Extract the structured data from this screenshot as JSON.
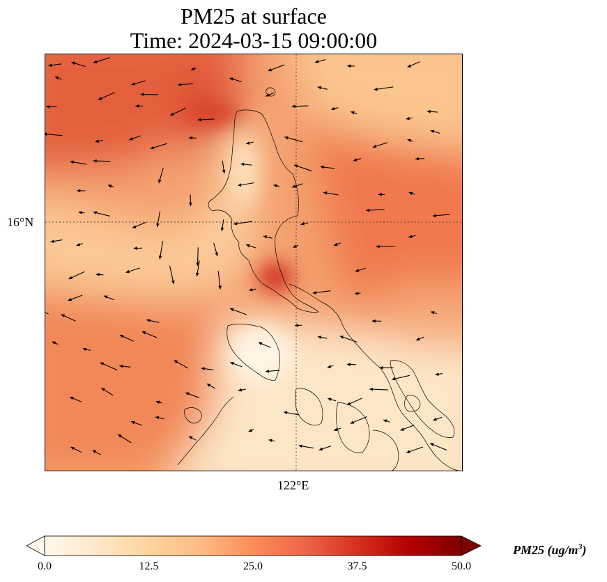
{
  "title": {
    "line1": "PM25 at surface",
    "line2": "Time: 2024-03-15 09:00:00"
  },
  "map": {
    "lat_tick_label": "16°N",
    "lon_tick_label": "122°E",
    "variable": "PM25",
    "field_description_regions": [
      {
        "name": "north-west sea high",
        "pm25": 36
      },
      {
        "name": "north-central ridge",
        "pm25": 40
      },
      {
        "name": "north-east sea",
        "pm25": 22
      },
      {
        "name": "east sea band",
        "pm25": 30
      },
      {
        "name": "west sea tongue low",
        "pm25": 14
      },
      {
        "name": "central hotspot",
        "pm25": 42
      },
      {
        "name": "south-west sea",
        "pm25": 28
      },
      {
        "name": "south islands low",
        "pm25": 4
      }
    ],
    "wind_arrows": "black quiver arrows, mostly westward",
    "coastline_color": "#000000",
    "gridline_style": "dotted"
  },
  "colorbar": {
    "cmap": "OrRd",
    "min": 0.0,
    "max": 50.0,
    "ticks": [
      "0.0",
      "12.5",
      "25.0",
      "37.5",
      "50.0"
    ],
    "label_main": "PM25 (ug/m",
    "label_sup": "3",
    "label_end": ")",
    "extend": "both",
    "stops": [
      "#fff7ec",
      "#fee8c8",
      "#fdd49e",
      "#fdbb84",
      "#fc8d59",
      "#ef6548",
      "#d7301f",
      "#b30000",
      "#7f0000"
    ]
  }
}
